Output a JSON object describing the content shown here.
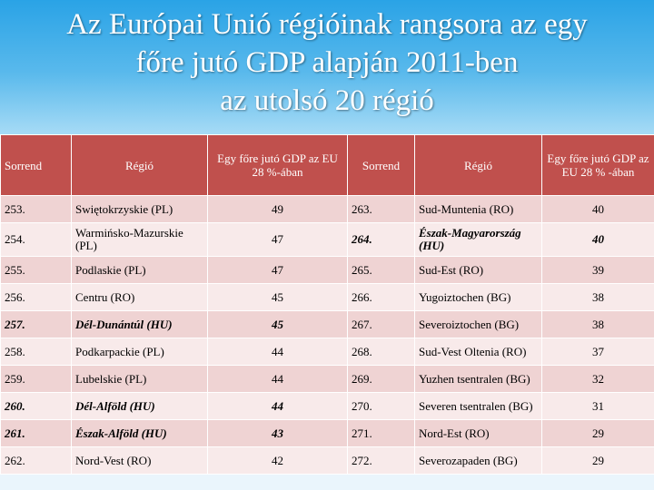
{
  "title": {
    "line1": "Az Európai Unió régióinak rangsora az egy",
    "line2": "főre jutó GDP alapján 2011-ben",
    "line3": "az utolsó 20 régió"
  },
  "headers": {
    "rank": "Sorrend",
    "region": "Régió",
    "gdp_left": "Egy főre jutó GDP az EU 28 %-ában",
    "rank2": "Sorrend",
    "region2": "Régió",
    "gdp_right": "Egy főre jutó GDP az EU 28 % -ában"
  },
  "rows": [
    {
      "l_rank": "253.",
      "l_region": "Swiętokrzyskie (PL)",
      "l_gdp": "49",
      "r_rank": "263.",
      "r_region": "Sud-Muntenia (RO)",
      "r_gdp": "40"
    },
    {
      "l_rank": "254.",
      "l_region": "Warmińsko-Mazurskie (PL)",
      "l_gdp": "47",
      "r_rank": "264.",
      "r_region": "Észak-Magyarország (HU)",
      "r_gdp": "40"
    },
    {
      "l_rank": "255.",
      "l_region": "Podlaskie (PL)",
      "l_gdp": "47",
      "r_rank": "265.",
      "r_region": "Sud-Est (RO)",
      "r_gdp": "39"
    },
    {
      "l_rank": "256.",
      "l_region": "Centru (RO)",
      "l_gdp": "45",
      "r_rank": "266.",
      "r_region": "Yugoiztochen (BG)",
      "r_gdp": "38"
    },
    {
      "l_rank": "257.",
      "l_region": "Dél-Dunántúl (HU)",
      "l_gdp": "45",
      "r_rank": "267.",
      "r_region": "Severoiztochen (BG)",
      "r_gdp": "38"
    },
    {
      "l_rank": "258.",
      "l_region": "Podkarpackie (PL)",
      "l_gdp": "44",
      "r_rank": "268.",
      "r_region": "Sud-Vest Oltenia (RO)",
      "r_gdp": "37"
    },
    {
      "l_rank": "259.",
      "l_region": "Lubelskie (PL)",
      "l_gdp": "44",
      "r_rank": "269.",
      "r_region": "Yuzhen tsentralen (BG)",
      "r_gdp": "32"
    },
    {
      "l_rank": "260.",
      "l_region": "Dél-Alföld (HU)",
      "l_gdp": "44",
      "r_rank": "270.",
      "r_region": "Severen tsentralen (BG)",
      "r_gdp": "31"
    },
    {
      "l_rank": "261.",
      "l_region": "Észak-Alföld (HU)",
      "l_gdp": "43",
      "r_rank": "271.",
      "r_region": "Nord-Est (RO)",
      "r_gdp": "29"
    },
    {
      "l_rank": "262.",
      "l_region": "Nord-Vest (RO)",
      "l_gdp": "42",
      "r_rank": "272.",
      "r_region": "Severozapaden (BG)",
      "r_gdp": "29"
    }
  ],
  "highlighted_rows_left": [
    4,
    7,
    8
  ],
  "highlighted_rows_right": [
    1
  ],
  "colors": {
    "header": "#c0504d",
    "row_odd": "#efd3d3",
    "row_even": "#f8eaea",
    "title_text": "#ffffff"
  }
}
